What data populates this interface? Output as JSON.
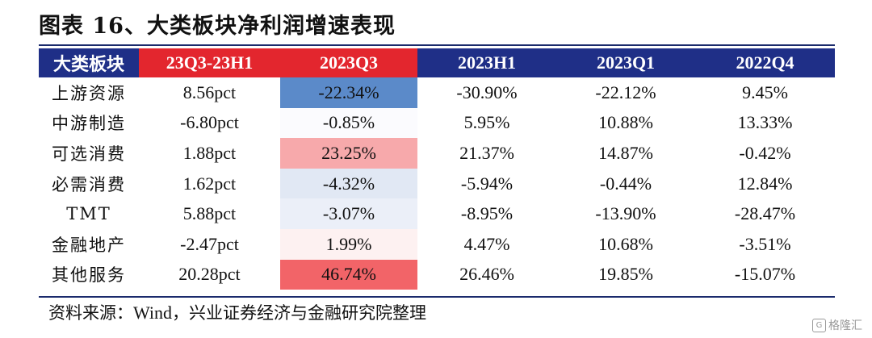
{
  "title": "图表 16、大类板块净利润增速表现",
  "table": {
    "headers": [
      "大类板块",
      "23Q3-23H1",
      "2023Q3",
      "2023H1",
      "2023Q1",
      "2022Q4"
    ],
    "rows": [
      {
        "name": "上游资源",
        "diff": "8.56pct",
        "q3": "-22.34%",
        "h1": "-30.90%",
        "q1": "-22.12%",
        "q4": "9.45%",
        "q3_bg": "#5b8ac9"
      },
      {
        "name": "中游制造",
        "diff": "-6.80pct",
        "q3": "-0.85%",
        "h1": "5.95%",
        "q1": "10.88%",
        "q4": "13.33%",
        "q3_bg": "#fbfbfe"
      },
      {
        "name": "可选消费",
        "diff": "1.88pct",
        "q3": "23.25%",
        "h1": "21.37%",
        "q1": "14.87%",
        "q4": "-0.42%",
        "q3_bg": "#f7a9ab"
      },
      {
        "name": "必需消费",
        "diff": "1.62pct",
        "q3": "-4.32%",
        "h1": "-5.94%",
        "q1": "-0.44%",
        "q4": "12.84%",
        "q3_bg": "#e1e8f4"
      },
      {
        "name": "TMT",
        "diff": "5.88pct",
        "q3": "-3.07%",
        "h1": "-8.95%",
        "q1": "-13.90%",
        "q4": "-28.47%",
        "q3_bg": "#ebeff8"
      },
      {
        "name": "金融地产",
        "diff": "-2.47pct",
        "q3": "1.99%",
        "h1": "4.47%",
        "q1": "10.68%",
        "q4": "-3.51%",
        "q3_bg": "#fdf1f1"
      },
      {
        "name": "其他服务",
        "diff": "20.28pct",
        "q3": "46.74%",
        "h1": "26.46%",
        "q1": "19.85%",
        "q4": "-15.07%",
        "q3_bg": "#f26468"
      }
    ]
  },
  "source": {
    "prefix": "资料来源：",
    "latin": "Wind",
    "suffix": "，兴业证券经济与金融研究院整理"
  },
  "watermark": "格隆汇",
  "watermark_icon": "G"
}
